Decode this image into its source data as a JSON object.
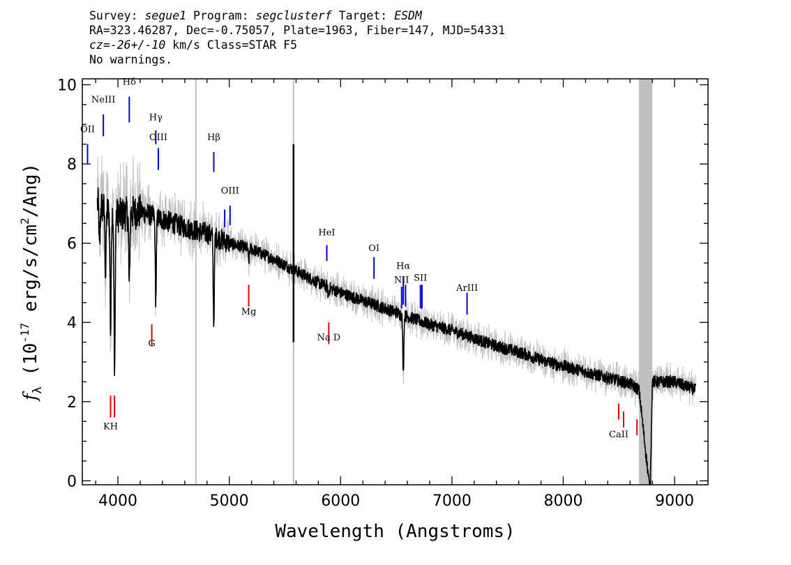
{
  "header": {
    "survey_label": "Survey:",
    "survey": "segue1",
    "program_label": "Program:",
    "program": "segclusterf",
    "target_label": "Target:",
    "target": "ESDM",
    "line2": "RA=323.46287, Dec=-0.75057, Plate=1963, Fiber=147, MJD=54331",
    "cz_label": "cz=",
    "cz_value": "-26+/-10",
    "cz_unit": " km/s Class=STAR F5",
    "warnings": "No warnings."
  },
  "colors": {
    "flux": "#000000",
    "error": "#c0c0c0",
    "emission": "#0000cc",
    "absorption": "#dd0000"
  },
  "chart_data": {
    "type": "line",
    "xlabel": "Wavelength (Angstroms)",
    "ylabel_prefix": "f",
    "ylabel_sub": "λ",
    "ylabel_open": " (10",
    "ylabel_exp": "-17",
    "ylabel_mid": " erg/s/cm",
    "ylabel_exp2": "2",
    "ylabel_close": "/Ang)",
    "xlim": [
      3680,
      9300
    ],
    "ylim": [
      -0.1,
      10.15
    ],
    "xticks": [
      4000,
      5000,
      6000,
      7000,
      8000,
      9000
    ],
    "yticks": [
      0,
      2,
      4,
      6,
      8,
      10
    ],
    "grid": false,
    "flux_anchors": {
      "x": [
        3820,
        3900,
        4000,
        4200,
        4400,
        4600,
        4800,
        5000,
        5200,
        5400,
        5600,
        5800,
        6000,
        6200,
        6400,
        6600,
        6800,
        7000,
        7200,
        7400,
        7600,
        7800,
        8000,
        8200,
        8400,
        8600,
        8680,
        8700,
        8780,
        8800,
        9000,
        9180
      ],
      "y": [
        7.0,
        6.8,
        6.7,
        6.8,
        6.6,
        6.4,
        6.25,
        6.0,
        5.85,
        5.6,
        5.3,
        5.0,
        4.75,
        4.55,
        4.35,
        4.15,
        3.95,
        3.8,
        3.6,
        3.4,
        3.25,
        3.05,
        2.9,
        2.75,
        2.6,
        2.45,
        2.3,
        1.8,
        -0.3,
        2.5,
        2.5,
        2.3
      ]
    },
    "absorption_features": [
      {
        "x": 3835,
        "depth": 1.2
      },
      {
        "x": 3889,
        "depth": 1.6
      },
      {
        "x": 3934,
        "depth": 3.0
      },
      {
        "x": 3970,
        "depth": 4.2
      },
      {
        "x": 4102,
        "depth": 1.9
      },
      {
        "x": 4340,
        "depth": 2.1
      },
      {
        "x": 4861,
        "depth": 2.2
      },
      {
        "x": 5175,
        "depth": 0.3
      },
      {
        "x": 5890,
        "depth": 0.25
      },
      {
        "x": 6563,
        "depth": 1.4
      }
    ],
    "spikes": [
      {
        "x": 5577,
        "low": 3.5,
        "high": 8.5
      }
    ],
    "error_band_lines": [
      4700,
      5577
    ],
    "emission_lines": [
      {
        "label": "OII",
        "x": 3727,
        "label_y": 8.8,
        "y0": 8.5,
        "y1": 8.0
      },
      {
        "label": "NeIII",
        "x": 3869,
        "label_y": 9.55,
        "y0": 9.25,
        "y1": 8.7
      },
      {
        "label": "Hδ",
        "x": 4102,
        "label_y": 10.0,
        "y0": 9.7,
        "y1": 9.05
      },
      {
        "label": "Hγ",
        "x": 4340,
        "label_y": 9.1,
        "y0": 8.85,
        "y1": 8.5
      },
      {
        "label": "OIII",
        "x": 4363,
        "label_y": 8.6,
        "y0": 8.4,
        "y1": 7.85
      },
      {
        "label": "Hβ",
        "x": 4861,
        "label_y": 8.6,
        "y0": 8.3,
        "y1": 7.8
      },
      {
        "label": "OIII",
        "x": 4959,
        "label_y": null,
        "y0": 6.85,
        "y1": 6.4
      },
      {
        "label": "OIII",
        "x": 5007,
        "label_y": 7.25,
        "y0": 6.95,
        "y1": 6.45
      },
      {
        "label": "HeI",
        "x": 5876,
        "label_y": 6.2,
        "y0": 5.95,
        "y1": 5.55
      },
      {
        "label": "OI",
        "x": 6300,
        "label_y": 5.8,
        "y0": 5.65,
        "y1": 5.1
      },
      {
        "label": "NII",
        "x": 6548,
        "label_y": 5.0,
        "y0": 4.9,
        "y1": 4.35
      },
      {
        "label": "Hα",
        "x": 6563,
        "label_y": 5.35,
        "y0": 5.15,
        "y1": 4.45
      },
      {
        "label": "NII",
        "x": 6583,
        "label_y": null,
        "y0": 4.95,
        "y1": 4.4
      },
      {
        "label": "SII",
        "x": 6717,
        "label_y": 5.05,
        "y0": 4.95,
        "y1": 4.35
      },
      {
        "label": "SII",
        "x": 6731,
        "label_y": null,
        "y0": 4.95,
        "y1": 4.35
      },
      {
        "label": "ArIII",
        "x": 7136,
        "label_y": 4.8,
        "y0": 4.75,
        "y1": 4.2
      }
    ],
    "absorption_lines": [
      {
        "label": "K",
        "x": 3934,
        "label_y": 1.3,
        "y0": 2.15,
        "y1": 1.6
      },
      {
        "label": "H",
        "x": 3969,
        "label_y": null,
        "y0": 2.15,
        "y1": 1.6
      },
      {
        "label": "G",
        "x": 4304,
        "label_y": 3.4,
        "y0": 3.95,
        "y1": 3.4
      },
      {
        "label": "Mg",
        "x": 5175,
        "label_y": 4.2,
        "y0": 4.95,
        "y1": 4.4
      },
      {
        "label": "Na D",
        "x": 5894,
        "label_y": 3.55,
        "y0": 4.0,
        "y1": 3.45
      },
      {
        "label": "CaII",
        "x": 8498,
        "label_y": 1.1,
        "y0": 1.95,
        "y1": 1.55
      },
      {
        "label": "CaII",
        "x": 8542,
        "label_y": null,
        "y0": 1.75,
        "y1": 1.35
      },
      {
        "label": "CaII",
        "x": 8662,
        "label_y": null,
        "y0": 1.55,
        "y1": 1.15
      }
    ]
  }
}
